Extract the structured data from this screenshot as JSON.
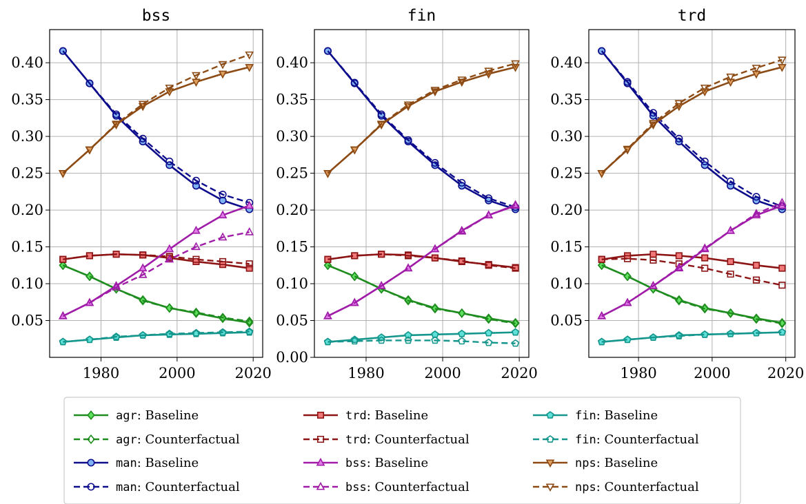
{
  "chart_data": [
    {
      "type": "line",
      "title": "bss",
      "xlabel": "",
      "ylabel": "",
      "xlim": [
        1966.5,
        2022.5
      ],
      "ylim": [
        0.0,
        0.445
      ],
      "xticks": [
        1980,
        2000,
        2020
      ],
      "yticks": [
        0.05,
        0.1,
        0.15,
        0.2,
        0.25,
        0.3,
        0.35,
        0.4
      ],
      "ytick_labels": [
        "0.05",
        "0.10",
        "0.15",
        "0.20",
        "0.25",
        "0.30",
        "0.35",
        "0.40"
      ],
      "grid": true,
      "x": [
        1970,
        1977,
        1984,
        1991,
        1998,
        2005,
        2012,
        2019
      ],
      "series": [
        {
          "sector": "agr",
          "scenario": "Baseline",
          "values": [
            0.125,
            0.11,
            0.093,
            0.078,
            0.067,
            0.06,
            0.053,
            0.047
          ]
        },
        {
          "sector": "agr",
          "scenario": "Counterfactual",
          "values": [
            0.125,
            0.11,
            0.093,
            0.077,
            0.067,
            0.061,
            0.054,
            0.049
          ]
        },
        {
          "sector": "man",
          "scenario": "Baseline",
          "values": [
            0.416,
            0.372,
            0.328,
            0.293,
            0.261,
            0.233,
            0.213,
            0.201
          ]
        },
        {
          "sector": "man",
          "scenario": "Counterfactual",
          "values": [
            0.416,
            0.372,
            0.33,
            0.297,
            0.266,
            0.24,
            0.221,
            0.21
          ]
        },
        {
          "sector": "trd",
          "scenario": "Baseline",
          "values": [
            0.133,
            0.138,
            0.14,
            0.139,
            0.135,
            0.13,
            0.126,
            0.121
          ]
        },
        {
          "sector": "trd",
          "scenario": "Counterfactual",
          "values": [
            0.133,
            0.138,
            0.14,
            0.139,
            0.137,
            0.133,
            0.13,
            0.127
          ]
        },
        {
          "sector": "bss",
          "scenario": "Baseline",
          "values": [
            0.056,
            0.074,
            0.097,
            0.121,
            0.147,
            0.172,
            0.193,
            0.206
          ]
        },
        {
          "sector": "bss",
          "scenario": "Counterfactual",
          "values": [
            0.056,
            0.074,
            0.095,
            0.112,
            0.133,
            0.15,
            0.163,
            0.17
          ]
        },
        {
          "sector": "fin",
          "scenario": "Baseline",
          "values": [
            0.021,
            0.024,
            0.027,
            0.03,
            0.031,
            0.032,
            0.033,
            0.034
          ]
        },
        {
          "sector": "fin",
          "scenario": "Counterfactual",
          "values": [
            0.021,
            0.024,
            0.028,
            0.03,
            0.032,
            0.033,
            0.034,
            0.035
          ]
        },
        {
          "sector": "nps",
          "scenario": "Baseline",
          "values": [
            0.25,
            0.282,
            0.316,
            0.341,
            0.361,
            0.374,
            0.385,
            0.394
          ]
        },
        {
          "sector": "nps",
          "scenario": "Counterfactual",
          "values": [
            0.25,
            0.282,
            0.317,
            0.344,
            0.366,
            0.383,
            0.398,
            0.411
          ]
        }
      ]
    },
    {
      "type": "line",
      "title": "fin",
      "xlabel": "",
      "ylabel": "",
      "xlim": [
        1966.5,
        2022.5
      ],
      "ylim": [
        0.0,
        0.445
      ],
      "xticks": [
        1980,
        2000,
        2020
      ],
      "yticks": [
        0.0,
        0.05,
        0.1,
        0.15,
        0.2,
        0.25,
        0.3,
        0.35,
        0.4
      ],
      "ytick_labels": [
        "0.00",
        "0.05",
        "0.10",
        "0.15",
        "0.20",
        "0.25",
        "0.30",
        "0.35",
        "0.40"
      ],
      "grid": true,
      "x": [
        1970,
        1977,
        1984,
        1991,
        1998,
        2005,
        2012,
        2019
      ],
      "series": [
        {
          "sector": "agr",
          "scenario": "Baseline",
          "values": [
            0.125,
            0.11,
            0.093,
            0.078,
            0.067,
            0.06,
            0.053,
            0.047
          ]
        },
        {
          "sector": "agr",
          "scenario": "Counterfactual",
          "values": [
            0.125,
            0.11,
            0.093,
            0.077,
            0.066,
            0.06,
            0.052,
            0.046
          ]
        },
        {
          "sector": "man",
          "scenario": "Baseline",
          "values": [
            0.416,
            0.372,
            0.328,
            0.293,
            0.261,
            0.233,
            0.213,
            0.201
          ]
        },
        {
          "sector": "man",
          "scenario": "Counterfactual",
          "values": [
            0.416,
            0.373,
            0.33,
            0.295,
            0.264,
            0.237,
            0.216,
            0.204
          ]
        },
        {
          "sector": "trd",
          "scenario": "Baseline",
          "values": [
            0.133,
            0.138,
            0.14,
            0.139,
            0.135,
            0.13,
            0.126,
            0.122
          ]
        },
        {
          "sector": "trd",
          "scenario": "Counterfactual",
          "values": [
            0.133,
            0.138,
            0.14,
            0.138,
            0.135,
            0.131,
            0.125,
            0.121
          ]
        },
        {
          "sector": "bss",
          "scenario": "Baseline",
          "values": [
            0.056,
            0.074,
            0.097,
            0.121,
            0.147,
            0.172,
            0.193,
            0.206
          ]
        },
        {
          "sector": "bss",
          "scenario": "Counterfactual",
          "values": [
            0.056,
            0.074,
            0.097,
            0.121,
            0.147,
            0.171,
            0.193,
            0.207
          ]
        },
        {
          "sector": "fin",
          "scenario": "Baseline",
          "values": [
            0.021,
            0.024,
            0.027,
            0.03,
            0.031,
            0.032,
            0.033,
            0.034
          ]
        },
        {
          "sector": "fin",
          "scenario": "Counterfactual",
          "values": [
            0.021,
            0.022,
            0.023,
            0.023,
            0.023,
            0.022,
            0.02,
            0.019
          ]
        },
        {
          "sector": "nps",
          "scenario": "Baseline",
          "values": [
            0.25,
            0.282,
            0.316,
            0.341,
            0.361,
            0.374,
            0.385,
            0.394
          ]
        },
        {
          "sector": "nps",
          "scenario": "Counterfactual",
          "values": [
            0.25,
            0.282,
            0.317,
            0.343,
            0.363,
            0.377,
            0.389,
            0.399
          ]
        }
      ]
    },
    {
      "type": "line",
      "title": "trd",
      "xlabel": "",
      "ylabel": "",
      "xlim": [
        1966.5,
        2022.5
      ],
      "ylim": [
        0.0,
        0.445
      ],
      "xticks": [
        1980,
        2000,
        2020
      ],
      "yticks": [
        0.05,
        0.1,
        0.15,
        0.2,
        0.25,
        0.3,
        0.35,
        0.4
      ],
      "ytick_labels": [
        "0.05",
        "0.10",
        "0.15",
        "0.20",
        "0.25",
        "0.30",
        "0.35",
        "0.40"
      ],
      "grid": true,
      "x": [
        1970,
        1977,
        1984,
        1991,
        1998,
        2005,
        2012,
        2019
      ],
      "series": [
        {
          "sector": "agr",
          "scenario": "Baseline",
          "values": [
            0.125,
            0.11,
            0.093,
            0.078,
            0.067,
            0.06,
            0.053,
            0.047
          ]
        },
        {
          "sector": "agr",
          "scenario": "Counterfactual",
          "values": [
            0.125,
            0.11,
            0.093,
            0.077,
            0.066,
            0.06,
            0.052,
            0.046
          ]
        },
        {
          "sector": "man",
          "scenario": "Baseline",
          "values": [
            0.416,
            0.372,
            0.328,
            0.293,
            0.261,
            0.233,
            0.213,
            0.201
          ]
        },
        {
          "sector": "man",
          "scenario": "Counterfactual",
          "values": [
            0.416,
            0.374,
            0.332,
            0.297,
            0.266,
            0.239,
            0.218,
            0.205
          ]
        },
        {
          "sector": "trd",
          "scenario": "Baseline",
          "values": [
            0.133,
            0.138,
            0.14,
            0.138,
            0.135,
            0.13,
            0.125,
            0.121
          ]
        },
        {
          "sector": "trd",
          "scenario": "Counterfactual",
          "values": [
            0.133,
            0.134,
            0.132,
            0.127,
            0.121,
            0.113,
            0.105,
            0.098
          ]
        },
        {
          "sector": "bss",
          "scenario": "Baseline",
          "values": [
            0.056,
            0.074,
            0.097,
            0.121,
            0.147,
            0.172,
            0.193,
            0.206
          ]
        },
        {
          "sector": "bss",
          "scenario": "Counterfactual",
          "values": [
            0.056,
            0.074,
            0.097,
            0.122,
            0.148,
            0.172,
            0.195,
            0.21
          ]
        },
        {
          "sector": "fin",
          "scenario": "Baseline",
          "values": [
            0.021,
            0.024,
            0.027,
            0.03,
            0.031,
            0.032,
            0.033,
            0.034
          ]
        },
        {
          "sector": "fin",
          "scenario": "Counterfactual",
          "values": [
            0.021,
            0.024,
            0.027,
            0.029,
            0.031,
            0.032,
            0.033,
            0.034
          ]
        },
        {
          "sector": "nps",
          "scenario": "Baseline",
          "values": [
            0.25,
            0.282,
            0.316,
            0.341,
            0.361,
            0.374,
            0.385,
            0.394
          ]
        },
        {
          "sector": "nps",
          "scenario": "Counterfactual",
          "values": [
            0.25,
            0.283,
            0.318,
            0.345,
            0.366,
            0.381,
            0.393,
            0.404
          ]
        }
      ]
    }
  ],
  "legend": {
    "placement": "bottom-center",
    "entries": [
      {
        "sector": "agr",
        "separator": ":",
        "scenario": "Baseline"
      },
      {
        "sector": "agr",
        "separator": ":",
        "scenario": "Counterfactual"
      },
      {
        "sector": "man",
        "separator": ":",
        "scenario": "Baseline"
      },
      {
        "sector": "man",
        "separator": ":",
        "scenario": "Counterfactual"
      },
      {
        "sector": "trd",
        "separator": ":",
        "scenario": "Baseline"
      },
      {
        "sector": "trd",
        "separator": ":",
        "scenario": "Counterfactual"
      },
      {
        "sector": "bss",
        "separator": ":",
        "scenario": "Baseline"
      },
      {
        "sector": "bss",
        "separator": ":",
        "scenario": "Counterfactual"
      },
      {
        "sector": "fin",
        "separator": ":",
        "scenario": "Baseline"
      },
      {
        "sector": "fin",
        "separator": ":",
        "scenario": "Counterfactual"
      },
      {
        "sector": "nps",
        "separator": ":",
        "scenario": "Baseline"
      },
      {
        "sector": "nps",
        "separator": ":",
        "scenario": "Counterfactual"
      }
    ]
  },
  "styles": {
    "agr": {
      "color": "#1e8c1e",
      "fill": "#5fe05f",
      "marker": "diamond"
    },
    "man": {
      "color": "#0c0c8c",
      "fill": "#7fb2f0",
      "marker": "circle"
    },
    "trd": {
      "color": "#8c1414",
      "fill": "#f07878",
      "marker": "square"
    },
    "bss": {
      "color": "#a01ca8",
      "fill": "#e07ce8",
      "marker": "triangle-up"
    },
    "fin": {
      "color": "#14968c",
      "fill": "#5fe0d8",
      "marker": "pentagon"
    },
    "nps": {
      "color": "#8c4a14",
      "fill": "#e0a060",
      "marker": "triangle-down"
    }
  }
}
